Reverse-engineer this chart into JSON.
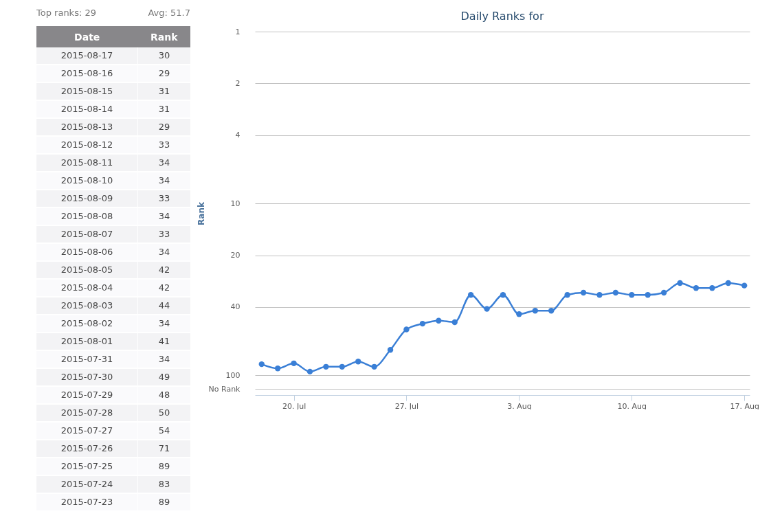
{
  "chart_data": [
    {
      "type": "other",
      "annotations": [
        "Top ranks: 29",
        "Avg: 51.7",
        "Date",
        "Rank",
        "2015-08-17",
        "30",
        "2015-08-16",
        "29",
        "2015-08-15",
        "31",
        "2015-08-14",
        "31",
        "2015-08-13",
        "29",
        "2015-08-12",
        "33",
        "2015-08-11",
        "34",
        "2015-08-10",
        "34",
        "2015-08-09",
        "33",
        "2015-08-08",
        "34",
        "2015-08-07",
        "33",
        "2015-08-06",
        "34",
        "2015-08-05",
        "42",
        "2015-08-04",
        "42",
        "2015-08-03",
        "44",
        "2015-08-02",
        "34",
        "2015-08-01",
        "41",
        "2015-07-31",
        "34",
        "2015-07-30",
        "49",
        "2015-07-29",
        "48",
        "2015-07-28",
        "50",
        "2015-07-27",
        "54",
        "2015-07-26",
        "71",
        "2015-07-25",
        "89",
        "2015-07-24",
        "83",
        "2015-07-23",
        "89"
      ]
    },
    {
      "type": "line",
      "title": "Daily Ranks for",
      "ylabel": "Rank",
      "x": [
        "2015-07-18",
        "2015-07-19",
        "2015-07-20",
        "2015-07-21",
        "2015-07-22",
        "2015-07-23",
        "2015-07-24",
        "2015-07-25",
        "2015-07-26",
        "2015-07-27",
        "2015-07-28",
        "2015-07-29",
        "2015-07-30",
        "2015-07-31",
        "2015-08-01",
        "2015-08-02",
        "2015-08-03",
        "2015-08-04",
        "2015-08-05",
        "2015-08-06",
        "2015-08-07",
        "2015-08-08",
        "2015-08-09",
        "2015-08-10",
        "2015-08-11",
        "2015-08-12",
        "2015-08-13",
        "2015-08-14",
        "2015-08-15",
        "2015-08-16",
        "2015-08-17"
      ],
      "series": [
        {
          "color": "#3a7fd6",
          "values": [
            86,
            91,
            85,
            95,
            89,
            89,
            83,
            89,
            71,
            54,
            50,
            48,
            49,
            34,
            41,
            34,
            44,
            42,
            42,
            34,
            33,
            34,
            33,
            34,
            34,
            33,
            29,
            31,
            31,
            29,
            30
          ]
        }
      ],
      "xlim": [
        "2015-07-17T14:00",
        "2015-08-17T08:00"
      ],
      "xticks": [
        {
          "value": "2015-07-20",
          "label": "20. Jul"
        },
        {
          "value": "2015-07-27",
          "label": "27. Jul"
        },
        {
          "value": "2015-08-03",
          "label": "3. Aug"
        },
        {
          "value": "2015-08-10",
          "label": "10. Aug"
        },
        {
          "value": "2015-08-17",
          "label": "17. Aug"
        }
      ],
      "ylim": [
        130,
        1
      ],
      "yticks": [
        1,
        2,
        4,
        10,
        20,
        40,
        100,
        {
          "value": 120,
          "label": "No Rank"
        }
      ],
      "log": "y",
      "grid": "y",
      "marker": "circle",
      "line_style": "solid"
    }
  ]
}
